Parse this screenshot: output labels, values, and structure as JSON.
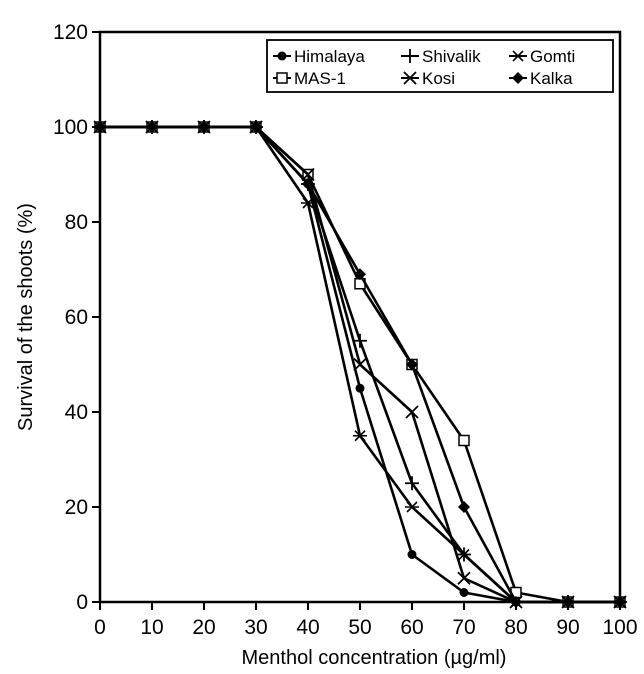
{
  "chart_data": {
    "type": "line",
    "title": "",
    "xlabel": "Menthol concentration (µg/ml)",
    "ylabel": "Survival of the shoots (%)",
    "x": [
      0,
      10,
      20,
      30,
      40,
      50,
      60,
      70,
      80,
      90,
      100
    ],
    "xlim": [
      0,
      100
    ],
    "ylim": [
      0,
      120
    ],
    "xticks": [
      0,
      10,
      20,
      30,
      40,
      50,
      60,
      70,
      80,
      90,
      100
    ],
    "yticks": [
      0,
      20,
      40,
      60,
      80,
      100,
      120
    ],
    "grid": false,
    "legend_position": "top-right",
    "series": [
      {
        "name": "Himalaya",
        "marker": "filled-circle",
        "values": [
          100,
          100,
          100,
          100,
          88,
          45,
          10,
          2,
          0,
          0,
          0
        ]
      },
      {
        "name": "Shivalik",
        "marker": "plus",
        "values": [
          100,
          100,
          100,
          100,
          88,
          55,
          25,
          10,
          0,
          0,
          0
        ]
      },
      {
        "name": "Gomti",
        "marker": "star",
        "values": [
          100,
          100,
          100,
          100,
          84,
          35,
          20,
          10,
          0,
          0,
          0
        ]
      },
      {
        "name": "MAS-1",
        "marker": "open-square",
        "values": [
          100,
          100,
          100,
          100,
          90,
          67,
          50,
          34,
          2,
          0,
          0
        ]
      },
      {
        "name": "Kosi",
        "marker": "x",
        "values": [
          100,
          100,
          100,
          100,
          90,
          50,
          40,
          5,
          0,
          0,
          0
        ]
      },
      {
        "name": "Kalka",
        "marker": "filled-diamond",
        "values": [
          100,
          100,
          100,
          100,
          88,
          69,
          50,
          20,
          0,
          0,
          0
        ]
      }
    ]
  }
}
